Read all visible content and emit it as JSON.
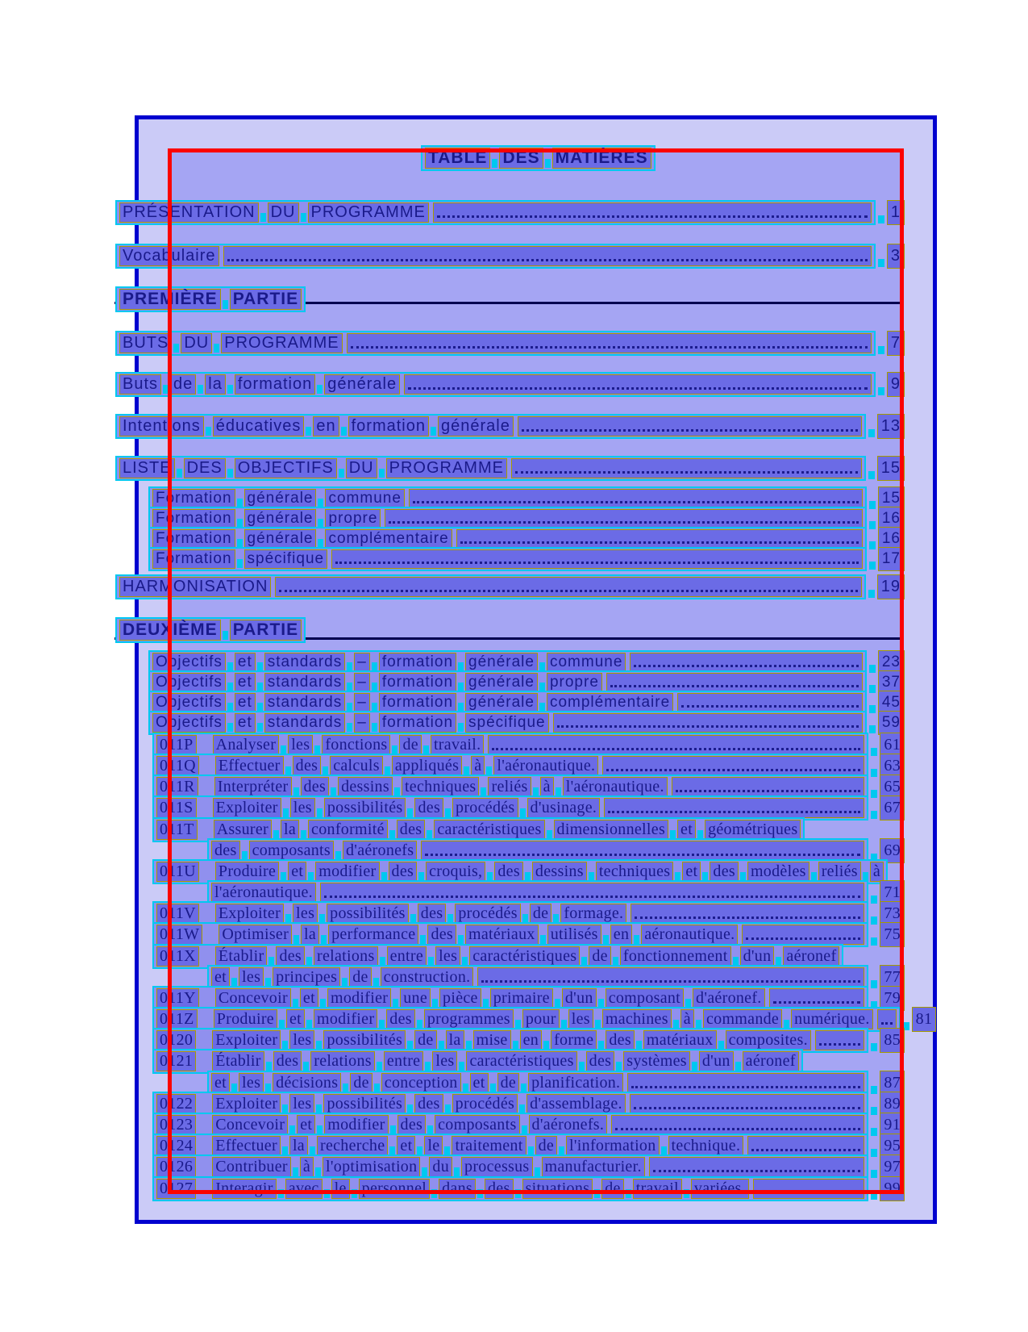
{
  "toc": {
    "title": "TABLE DES MATIÈRES",
    "rows": [
      {
        "kind": "h1",
        "text": "PRÉSENTATION DU PROGRAMME",
        "page": "1"
      },
      {
        "kind": "h2",
        "text": "Vocabulaire",
        "page": "3"
      },
      {
        "kind": "part",
        "text": "PREMIÈRE PARTIE"
      },
      {
        "kind": "h1",
        "text": "BUTS DU PROGRAMME",
        "page": "7"
      },
      {
        "kind": "h2",
        "text": "Buts de la formation générale",
        "page": "9"
      },
      {
        "kind": "h2",
        "text": "Intentions éducatives en formation générale",
        "page": "13"
      },
      {
        "kind": "h1",
        "text": "LISTE DES OBJECTIFS DU PROGRAMME",
        "page": "15"
      },
      {
        "kind": "sub",
        "text": "Formation générale commune",
        "page": "15"
      },
      {
        "kind": "sub",
        "text": "Formation générale propre",
        "page": "16"
      },
      {
        "kind": "sub",
        "text": "Formation générale complémentaire",
        "page": "16"
      },
      {
        "kind": "sub",
        "text": "Formation spécifique",
        "page": "17"
      },
      {
        "kind": "h1",
        "text": "HARMONISATION",
        "page": "19"
      },
      {
        "kind": "part",
        "text": "DEUXIÈME PARTIE"
      },
      {
        "kind": "sub",
        "text": "Objectifs et standards – formation générale commune",
        "page": "23"
      },
      {
        "kind": "sub",
        "text": "Objectifs et standards – formation générale propre",
        "page": "37"
      },
      {
        "kind": "sub",
        "text": "Objectifs et standards – formation générale complémentaire",
        "page": "45"
      },
      {
        "kind": "sub",
        "text": "Objectifs et standards – formation spécifique",
        "page": "59"
      },
      {
        "kind": "code",
        "code": "011P",
        "text": "Analyser les fonctions de travail.",
        "page": "61"
      },
      {
        "kind": "code",
        "code": "011Q",
        "text": "Effectuer des calculs appliqués à l'aéronautique.",
        "page": "63"
      },
      {
        "kind": "code",
        "code": "011R",
        "text": "Interpréter des dessins techniques reliés à l'aéronautique.",
        "page": "65"
      },
      {
        "kind": "code",
        "code": "011S",
        "text": "Exploiter les possibilités des procédés d'usinage.",
        "page": "67"
      },
      {
        "kind": "code",
        "code": "011T",
        "text": "Assurer la conformité des caractéristiques dimensionnelles et géométriques"
      },
      {
        "kind": "cont",
        "text": "des composants d'aéronefs",
        "page": "69"
      },
      {
        "kind": "code",
        "code": "011U",
        "text": "Produire et modifier des croquis, des dessins techniques et des modèles reliés à"
      },
      {
        "kind": "cont",
        "text": "l'aéronautique.",
        "page": "71"
      },
      {
        "kind": "code",
        "code": "011V",
        "text": "Exploiter les possibilités des procédés de formage.",
        "page": "73"
      },
      {
        "kind": "code",
        "code": "011W",
        "text": "Optimiser la performance des matériaux utilisés en aéronautique.",
        "page": "75"
      },
      {
        "kind": "code",
        "code": "011X",
        "text": "Établir des relations entre les caractéristiques de fonctionnement d'un aéronef"
      },
      {
        "kind": "cont",
        "text": "et les principes de construction.",
        "page": "77"
      },
      {
        "kind": "code",
        "code": "011Y",
        "text": "Concevoir et modifier une pièce primaire d'un composant d'aéronef.",
        "page": "79"
      },
      {
        "kind": "code",
        "code": "011Z",
        "text": "Produire et modifier des programmes pour les machines à commande numérique.",
        "page": "81"
      },
      {
        "kind": "code",
        "code": "0120",
        "text": "Exploiter les possibilités de la mise en forme des matériaux composites.",
        "page": "85"
      },
      {
        "kind": "code",
        "code": "0121",
        "text": "Établir des relations entre les caractéristiques des systèmes d'un aéronef"
      },
      {
        "kind": "cont",
        "text": "et les décisions de conception et de planification.",
        "page": "87"
      },
      {
        "kind": "code",
        "code": "0122",
        "text": "Exploiter les possibilités des procédés d'assemblage.",
        "page": "89"
      },
      {
        "kind": "code",
        "code": "0123",
        "text": "Concevoir et modifier des composants d'aéronefs.",
        "page": "91"
      },
      {
        "kind": "code",
        "code": "0124",
        "text": "Effectuer la recherche et le traitement de l'information technique.",
        "page": "95"
      },
      {
        "kind": "code",
        "code": "0126",
        "text": "Contribuer à l'optimisation du processus manufacturier.",
        "page": "97"
      },
      {
        "kind": "code",
        "code": "0127",
        "text": "Interagir avec le personnel dans des situations de travail variées.",
        "page": "99"
      }
    ]
  },
  "colors": {
    "page_background": "#cbcbf7",
    "page_border": "#0000cf",
    "ocr_block_fill": "#a5a5f3",
    "ocr_block_border": "#fb0300",
    "line_box_fill": "#9090ee",
    "line_box_border": "#00c8f0",
    "word_box_fill": "#6b6be6",
    "word_box_border": "#a59a00",
    "text": "#1a1a8a",
    "section_rule": "#000050"
  }
}
